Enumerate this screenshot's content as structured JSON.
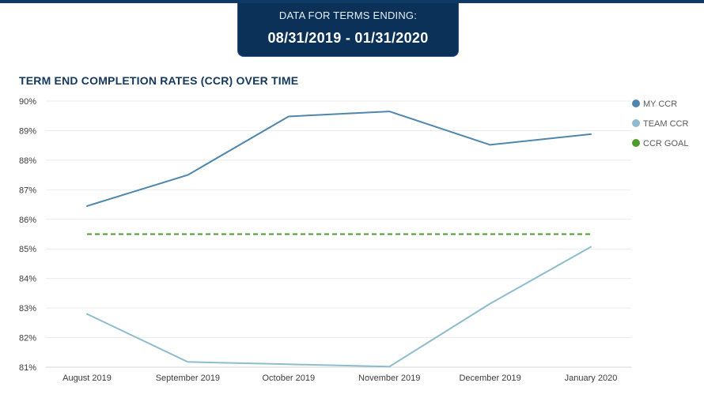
{
  "header": {
    "label": "DATA FOR TERMS ENDING:",
    "range": "08/31/2019 - 01/31/2020"
  },
  "chart_data": {
    "type": "line",
    "title": "TERM END COMPLETION RATES (CCR) OVER TIME",
    "xlabel": "",
    "ylabel": "",
    "categories": [
      "August 2019",
      "September 2019",
      "October 2019",
      "November 2019",
      "December 2019",
      "January 2020"
    ],
    "ylim": [
      81,
      90
    ],
    "yticks": [
      "90%",
      "89%",
      "88%",
      "87%",
      "86%",
      "85%",
      "84%",
      "83%",
      "82%",
      "81%"
    ],
    "grid": true,
    "legend_position": "right",
    "series": [
      {
        "name": "MY CCR",
        "color": "#4f86ad",
        "dashed": false,
        "values": [
          86.45,
          87.5,
          89.48,
          89.65,
          88.52,
          88.88
        ]
      },
      {
        "name": "TEAM CCR",
        "color": "#8fbccd",
        "dashed": false,
        "values": [
          82.8,
          81.18,
          81.1,
          81.02,
          83.15,
          85.07
        ]
      },
      {
        "name": "CCR GOAL",
        "color": "#4e9a2c",
        "dashed": true,
        "values": [
          85.5,
          85.5,
          85.5,
          85.5,
          85.5,
          85.5
        ]
      }
    ]
  }
}
